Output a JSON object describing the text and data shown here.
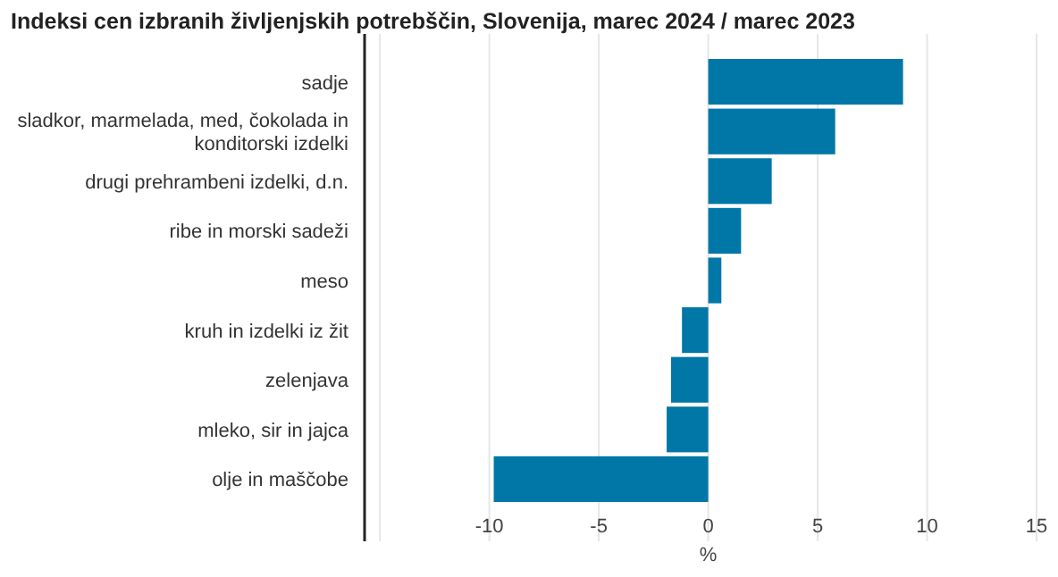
{
  "chart_data": {
    "type": "bar",
    "orientation": "horizontal",
    "title": "Indeksi cen izbranih življenjskih potrebščin, Slovenija, marec 2024 / marec 2023",
    "xlabel": "%",
    "categories": [
      "sadje",
      "sladkor, marmelada, med, čokolada in konditorski izdelki",
      "drugi prehrambeni izdelki, d.n.",
      "ribe in morski sadeži",
      "meso",
      "kruh in izdelki iz žit",
      "zelenjava",
      "mleko, sir in jajca",
      "olje in maščobe"
    ],
    "values": [
      8.9,
      5.8,
      2.9,
      1.5,
      0.6,
      -1.2,
      -1.7,
      -1.9,
      -9.8
    ],
    "color": "#0077a6",
    "xlim": [
      -15.7,
      15
    ],
    "xticks": [
      {
        "value": -15,
        "label": null
      },
      -10,
      -5,
      0,
      5,
      10,
      15
    ],
    "grid": "x"
  }
}
